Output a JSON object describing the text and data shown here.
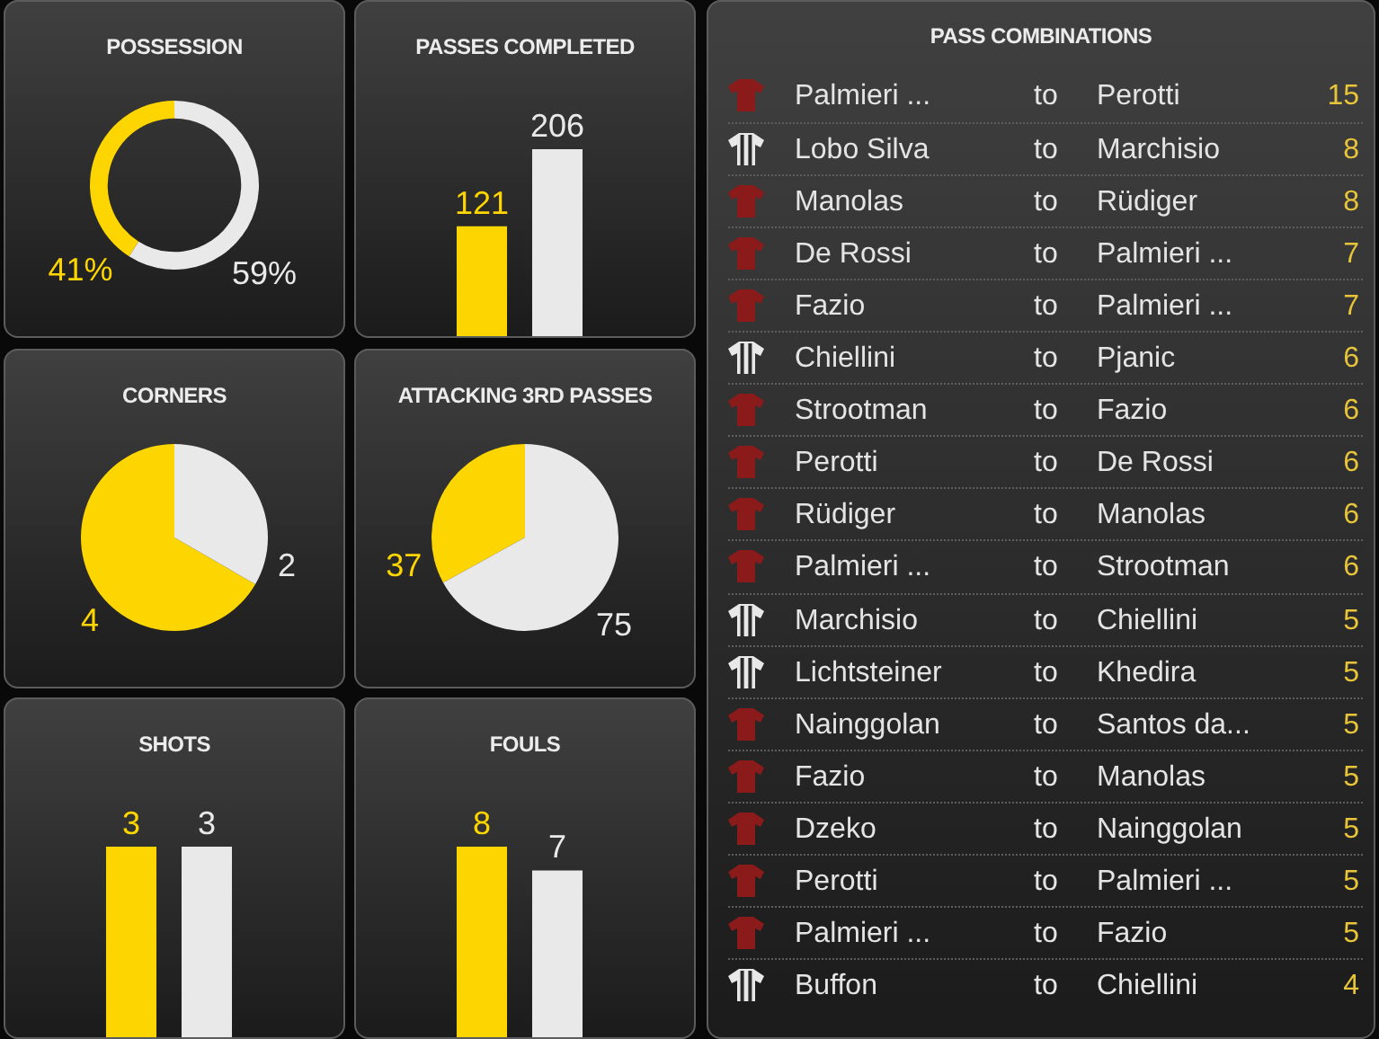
{
  "chart_data": [
    {
      "type": "donut",
      "title": "POSSESSION",
      "categories": [
        null,
        null
      ],
      "values": [
        41,
        59
      ],
      "colors": [
        "#fdd500",
        "#e9e9e9"
      ],
      "value_labels": [
        "41%",
        "59%"
      ]
    },
    {
      "type": "bar",
      "title": "PASSES COMPLETED",
      "categories": [
        null,
        null
      ],
      "values": [
        121,
        206
      ],
      "colors": [
        "#fdd500",
        "#e9e9e9"
      ],
      "data_labels": true,
      "tick_labels": false
    },
    {
      "type": "pie",
      "title": "CORNERS",
      "categories": [
        null,
        null
      ],
      "values": [
        4,
        2
      ],
      "colors": [
        "#fdd500",
        "#e9e9e9"
      ],
      "data_labels": true
    },
    {
      "type": "pie",
      "title": "ATTACKING 3RD PASSES",
      "categories": [
        null,
        null
      ],
      "values": [
        37,
        75
      ],
      "colors": [
        "#fdd500",
        "#e9e9e9"
      ],
      "data_labels": true
    },
    {
      "type": "bar",
      "title": "SHOTS",
      "categories": [
        null,
        null
      ],
      "values": [
        3,
        3
      ],
      "colors": [
        "#fdd500",
        "#e9e9e9"
      ],
      "data_labels": true,
      "tick_labels": false
    },
    {
      "type": "bar",
      "title": "FOULS",
      "categories": [
        null,
        null
      ],
      "values": [
        8,
        7
      ],
      "colors": [
        "#fdd500",
        "#e9e9e9"
      ],
      "data_labels": true,
      "tick_labels": false
    },
    {
      "type": "other",
      "title": "PASS COMBINATIONS",
      "y_categories": [
        "Palmieri ...",
        "Lobo Silva",
        "Manolas",
        "De Rossi",
        "Fazio",
        "Chiellini",
        "Strootman",
        "Perotti",
        "Rüdiger",
        "Palmieri ...",
        "Marchisio",
        "Lichtsteiner",
        "Nainggolan",
        "Fazio",
        "Dzeko",
        "Perotti",
        "Palmieri ...",
        "Buffon"
      ],
      "y2_categories": [
        "Perotti",
        "Marchisio",
        "Rüdiger",
        "Palmieri ...",
        "Palmieri ...",
        "Pjanic",
        "Fazio",
        "De Rossi",
        "Manolas",
        "Strootman",
        "Chiellini",
        "Khedira",
        "Santos da...",
        "Manolas",
        "Nainggolan",
        "Palmieri ...",
        "Fazio",
        "Chiellini"
      ],
      "values": [
        15,
        8,
        8,
        7,
        7,
        6,
        6,
        6,
        6,
        6,
        5,
        5,
        5,
        5,
        5,
        5,
        5,
        4
      ],
      "colors": [
        "#8b1a1a",
        "#e8e8e8",
        "#8b1a1a",
        "#8b1a1a",
        "#8b1a1a",
        "#e8e8e8",
        "#8b1a1a",
        "#8b1a1a",
        "#8b1a1a",
        "#8b1a1a",
        "#e8e8e8",
        "#e8e8e8",
        "#8b1a1a",
        "#8b1a1a",
        "#8b1a1a",
        "#8b1a1a",
        "#8b1a1a",
        "#e8e8e8"
      ],
      "data_labels": true,
      "annotations": [
        "to"
      ]
    }
  ]
}
